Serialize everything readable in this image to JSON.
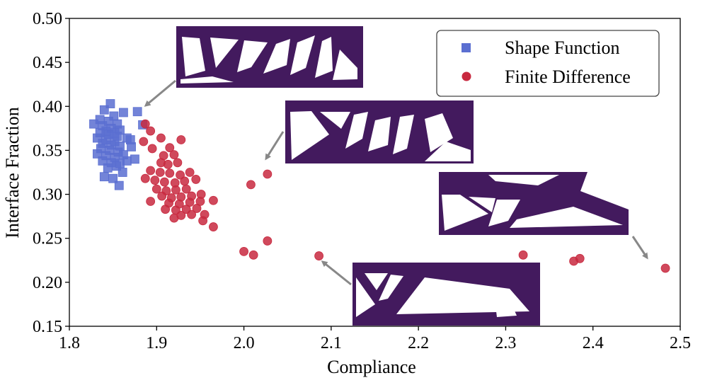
{
  "chart_data": {
    "type": "scatter",
    "title": "",
    "xlabel": "Compliance",
    "ylabel": "Interface Fraction",
    "xlim": [
      1.8,
      2.5
    ],
    "ylim": [
      0.15,
      0.5
    ],
    "xticks": [
      "1.8",
      "1.9",
      "2.0",
      "2.1",
      "2.2",
      "2.3",
      "2.4",
      "2.5"
    ],
    "yticks": [
      "0.15",
      "0.20",
      "0.25",
      "0.30",
      "0.35",
      "0.40",
      "0.45",
      "0.50"
    ],
    "grid": false,
    "legend_position": "top-right",
    "series": [
      {
        "name": "Shape Function",
        "marker": "square",
        "color": "#5b6fd1",
        "points": [
          [
            1.847,
            0.403
          ],
          [
            1.878,
            0.394
          ],
          [
            1.862,
            0.393
          ],
          [
            1.84,
            0.396
          ],
          [
            1.851,
            0.389
          ],
          [
            1.884,
            0.379
          ],
          [
            1.835,
            0.385
          ],
          [
            1.845,
            0.383
          ],
          [
            1.855,
            0.38
          ],
          [
            1.828,
            0.38
          ],
          [
            1.838,
            0.378
          ],
          [
            1.848,
            0.375
          ],
          [
            1.858,
            0.373
          ],
          [
            1.842,
            0.372
          ],
          [
            1.852,
            0.37
          ],
          [
            1.835,
            0.37
          ],
          [
            1.845,
            0.368
          ],
          [
            1.855,
            0.366
          ],
          [
            1.866,
            0.364
          ],
          [
            1.832,
            0.364
          ],
          [
            1.842,
            0.362
          ],
          [
            1.852,
            0.36
          ],
          [
            1.838,
            0.358
          ],
          [
            1.848,
            0.356
          ],
          [
            1.858,
            0.355
          ],
          [
            1.87,
            0.362
          ],
          [
            1.836,
            0.352
          ],
          [
            1.846,
            0.35
          ],
          [
            1.856,
            0.348
          ],
          [
            1.832,
            0.346
          ],
          [
            1.842,
            0.344
          ],
          [
            1.852,
            0.342
          ],
          [
            1.862,
            0.345
          ],
          [
            1.838,
            0.338
          ],
          [
            1.848,
            0.336
          ],
          [
            1.858,
            0.335
          ],
          [
            1.866,
            0.338
          ],
          [
            1.844,
            0.33
          ],
          [
            1.854,
            0.332
          ],
          [
            1.861,
            0.325
          ],
          [
            1.84,
            0.32
          ],
          [
            1.85,
            0.318
          ],
          [
            1.857,
            0.31
          ],
          [
            1.875,
            0.34
          ],
          [
            1.871,
            0.354
          ]
        ]
      },
      {
        "name": "Finite Difference",
        "marker": "circle",
        "color": "#c8293f",
        "points": [
          [
            1.887,
            0.38
          ],
          [
            1.893,
            0.372
          ],
          [
            1.885,
            0.36
          ],
          [
            1.905,
            0.364
          ],
          [
            1.928,
            0.362
          ],
          [
            1.895,
            0.352
          ],
          [
            1.915,
            0.353
          ],
          [
            1.908,
            0.344
          ],
          [
            1.92,
            0.345
          ],
          [
            1.905,
            0.336
          ],
          [
            1.913,
            0.334
          ],
          [
            1.924,
            0.336
          ],
          [
            1.893,
            0.327
          ],
          [
            1.904,
            0.325
          ],
          [
            1.915,
            0.324
          ],
          [
            1.927,
            0.322
          ],
          [
            1.938,
            0.325
          ],
          [
            1.887,
            0.318
          ],
          [
            1.898,
            0.316
          ],
          [
            1.909,
            0.314
          ],
          [
            1.921,
            0.313
          ],
          [
            1.932,
            0.315
          ],
          [
            1.945,
            0.317
          ],
          [
            1.9,
            0.306
          ],
          [
            1.911,
            0.304
          ],
          [
            1.922,
            0.305
          ],
          [
            1.934,
            0.306
          ],
          [
            1.906,
            0.298
          ],
          [
            1.917,
            0.296
          ],
          [
            1.928,
            0.297
          ],
          [
            1.94,
            0.298
          ],
          [
            1.951,
            0.3
          ],
          [
            1.893,
            0.292
          ],
          [
            1.914,
            0.29
          ],
          [
            1.926,
            0.289
          ],
          [
            1.938,
            0.291
          ],
          [
            1.95,
            0.292
          ],
          [
            1.91,
            0.283
          ],
          [
            1.922,
            0.282
          ],
          [
            1.934,
            0.283
          ],
          [
            1.946,
            0.284
          ],
          [
            1.928,
            0.276
          ],
          [
            1.94,
            0.277
          ],
          [
            1.92,
            0.273
          ],
          [
            1.955,
            0.277
          ],
          [
            1.965,
            0.293
          ],
          [
            1.953,
            0.27
          ],
          [
            1.965,
            0.263
          ],
          [
            2.008,
            0.311
          ],
          [
            2.027,
            0.323
          ],
          [
            2.0,
            0.235
          ],
          [
            2.011,
            0.231
          ],
          [
            2.027,
            0.247
          ],
          [
            2.086,
            0.23
          ],
          [
            2.32,
            0.231
          ],
          [
            2.378,
            0.224
          ],
          [
            2.385,
            0.227
          ],
          [
            2.483,
            0.216
          ]
        ]
      }
    ]
  },
  "legend": {
    "items": [
      {
        "label": "Shape Function",
        "marker": "square",
        "color": "#5b6fd1"
      },
      {
        "label": "Finite Difference",
        "marker": "circle",
        "color": "#c8293f"
      }
    ]
  },
  "colors": {
    "structure": "#431a5e",
    "void": "#ffffff",
    "arrow": "#888888"
  }
}
